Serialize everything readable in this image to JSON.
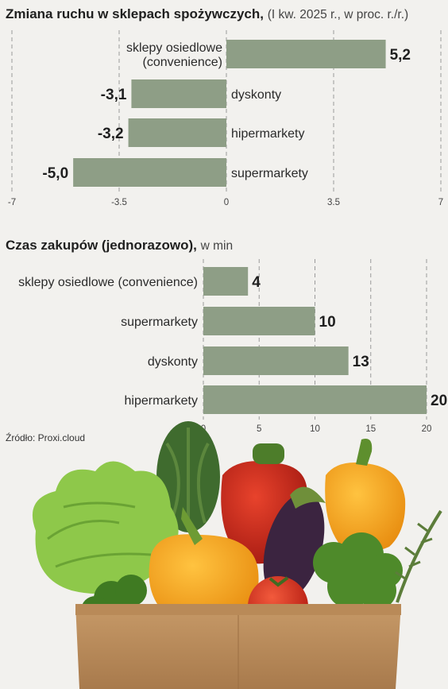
{
  "chart_data": [
    {
      "type": "bar",
      "orientation": "horizontal",
      "title": "Zmiana ruchu w sklepach spożywczych,",
      "subtitle": "(I kw. 2025 r., w proc. r./r.)",
      "categories": [
        "sklepy osiedlowe (convenience)",
        "dyskonty",
        "hipermarkety",
        "supermarkety"
      ],
      "category_lines": [
        [
          "sklepy osiedlowe",
          "(convenience)"
        ],
        [
          "dyskonty"
        ],
        [
          "hipermarkety"
        ],
        [
          "supermarkety"
        ]
      ],
      "values": [
        5.2,
        -3.1,
        -3.2,
        -5.0
      ],
      "value_labels": [
        "5,2",
        "-3,1",
        "-3,2",
        "-5,0"
      ],
      "xlim": [
        -7,
        7
      ],
      "ticks": [
        -7,
        -3.5,
        0,
        3.5,
        7
      ],
      "tick_labels": [
        "-7",
        "-3.5",
        "0",
        "3.5",
        "7"
      ],
      "grid": true,
      "bar_color": "#8e9e86"
    },
    {
      "type": "bar",
      "orientation": "horizontal",
      "title": "Czas zakupów (jednorazowo),",
      "subtitle": "w min",
      "categories": [
        "sklepy osiedlowe (convenience)",
        "supermarkety",
        "dyskonty",
        "hipermarkety"
      ],
      "values": [
        4,
        10,
        13,
        20
      ],
      "value_labels": [
        "4",
        "10",
        "13",
        "20"
      ],
      "xlim": [
        0,
        20
      ],
      "ticks": [
        0,
        5,
        10,
        15,
        20
      ],
      "tick_labels": [
        "0",
        "5",
        "10",
        "15",
        "20"
      ],
      "grid": true,
      "bar_color": "#8e9e86"
    }
  ],
  "source": "Źródło: Proxi.cloud"
}
